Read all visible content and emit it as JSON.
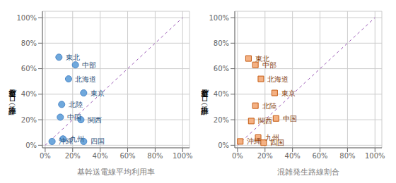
{
  "chart_data": [
    {
      "type": "scatter",
      "x_label": "基幹送電線平均利用率",
      "y_label": "空容量ゼロ率（推計）",
      "point_labels": [
        "東北",
        "中部",
        "北海道",
        "東京",
        "北陸",
        "中国",
        "関西",
        "九州",
        "沖縄",
        "四国"
      ],
      "x": [
        0.1,
        0.22,
        0.17,
        0.28,
        0.12,
        0.11,
        0.26,
        0.13,
        0.05,
        0.28
      ],
      "values": [
        0.69,
        0.63,
        0.52,
        0.41,
        0.32,
        0.22,
        0.2,
        0.05,
        0.03,
        0.03
      ],
      "marker": "circle",
      "color": "#6fa8dc",
      "edge_color": "#4a86c8",
      "label_color": "#1f4e79",
      "xlim": [
        -0.02,
        1.05
      ],
      "ylim": [
        -0.02,
        1.05
      ],
      "xticks": [
        {
          "value": 0.0,
          "label": "0%"
        },
        {
          "value": 0.2,
          "label": "20%"
        },
        {
          "value": 0.4,
          "label": "40%"
        },
        {
          "value": 0.6,
          "label": "60%"
        },
        {
          "value": 0.8,
          "label": "80%"
        },
        {
          "value": 1.0,
          "label": "100%"
        }
      ],
      "yticks": [
        {
          "value": 0.0,
          "label": "0%"
        },
        {
          "value": 0.2,
          "label": "20%"
        },
        {
          "value": 0.4,
          "label": "40%"
        },
        {
          "value": 0.6,
          "label": "60%"
        },
        {
          "value": 0.8,
          "label": "80%"
        },
        {
          "value": 1.0,
          "label": "100%"
        }
      ],
      "grid": true,
      "reference_line": {
        "x": [
          0,
          1
        ],
        "y": [
          0,
          1
        ],
        "color": "#9b59b6",
        "line_style": "dashed"
      }
    },
    {
      "type": "scatter",
      "x_label": "混雑発生路線割合",
      "y_label": "空容量ゼロ率（推計）",
      "point_labels": [
        "東北",
        "中部",
        "北海道",
        "東京",
        "北陸",
        "関西",
        "中国",
        "九州",
        "沖縄",
        "四国"
      ],
      "x": [
        0.08,
        0.13,
        0.17,
        0.27,
        0.13,
        0.1,
        0.28,
        0.15,
        0.02,
        0.19
      ],
      "values": [
        0.68,
        0.63,
        0.52,
        0.41,
        0.31,
        0.19,
        0.21,
        0.06,
        0.03,
        0.02
      ],
      "marker": "square",
      "color": "#f4b183",
      "edge_color": "#c55a11",
      "label_color": "#843c0c",
      "xlim": [
        -0.02,
        1.05
      ],
      "ylim": [
        -0.02,
        1.05
      ],
      "xticks": [
        {
          "value": 0.0,
          "label": "0%"
        },
        {
          "value": 0.2,
          "label": "20%"
        },
        {
          "value": 0.4,
          "label": "40%"
        },
        {
          "value": 0.6,
          "label": "60%"
        },
        {
          "value": 0.8,
          "label": "80%"
        },
        {
          "value": 1.0,
          "label": "100%"
        }
      ],
      "yticks": [
        {
          "value": 0.0,
          "label": "0%"
        },
        {
          "value": 0.2,
          "label": "20%"
        },
        {
          "value": 0.4,
          "label": "40%"
        },
        {
          "value": 0.6,
          "label": "60%"
        },
        {
          "value": 0.8,
          "label": "80%"
        },
        {
          "value": 1.0,
          "label": "100%"
        }
      ],
      "grid": true,
      "reference_line": {
        "x": [
          0,
          1
        ],
        "y": [
          0,
          1
        ],
        "color": "#9b59b6",
        "line_style": "dashed"
      }
    }
  ]
}
